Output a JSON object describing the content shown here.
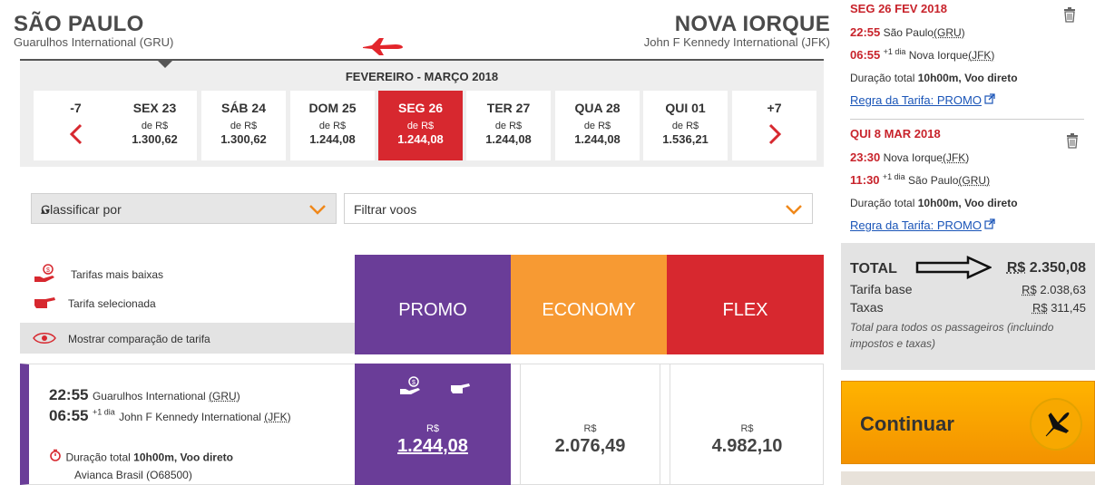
{
  "header": {
    "origin_city": "SÃO PAULO",
    "origin_airport": "Guarulhos International (GRU)",
    "dest_city": "NOVA IORQUE",
    "dest_airport": "John F Kennedy International (JFK)"
  },
  "dates": {
    "month_label": "FEVEREIRO - MARÇO 2018",
    "prev_label": "-7",
    "next_label": "+7",
    "days": [
      {
        "name": "SEX 23",
        "from": "de R$",
        "price": "1.300,62"
      },
      {
        "name": "SÁB 24",
        "from": "de R$",
        "price": "1.300,62"
      },
      {
        "name": "DOM 25",
        "from": "de R$",
        "price": "1.244,08"
      },
      {
        "name": "SEG 26",
        "from": "de R$",
        "price": "1.244,08",
        "selected": true
      },
      {
        "name": "TER 27",
        "from": "de R$",
        "price": "1.244,08"
      },
      {
        "name": "QUA 28",
        "from": "de R$",
        "price": "1.244,08"
      },
      {
        "name": "QUI 01",
        "from": "de R$",
        "price": "1.536,21"
      }
    ]
  },
  "filters": {
    "sort_label": "Classificar por",
    "filter_label": "Filtrar voos"
  },
  "legend": {
    "lowest": "Tarifas mais baixas",
    "selected": "Tarifa selecionada",
    "compare": "Mostrar comparação de tarifa"
  },
  "fares": {
    "promo": "PROMO",
    "economy": "ECONOMY",
    "flex": "FLEX"
  },
  "flight": {
    "dep_time": "22:55",
    "dep_airport": "Guarulhos International ",
    "dep_code": "(GRU)",
    "arr_time": "06:55",
    "arr_plus": "+1 dia",
    "arr_airport": "John F Kennedy International ",
    "arr_code": "(JFK)",
    "duration_label": "Duração total ",
    "duration_value": "10h00m, Voo direto",
    "carrier": "Avianca Brasil (O68500)",
    "currency": "R$",
    "promo_price": "1.244,08",
    "economy_price": "2.076,49",
    "flex_price": "4.982,10"
  },
  "summary": {
    "out": {
      "date": "SEG 26 FEV 2018",
      "dep_time": "22:55",
      "dep_city": "São Paulo",
      "dep_code": "(GRU)",
      "arr_time": "06:55",
      "arr_plus": "+1 dia",
      "arr_city": "Nova Iorque",
      "arr_code": "(JFK)",
      "duration_label": "Duração total ",
      "duration_value": "10h00m, Voo direto",
      "rule": "Regra da Tarifa: PROMO"
    },
    "ret": {
      "date": "QUI 8 MAR 2018",
      "dep_time": "23:30",
      "dep_city": "Nova Iorque",
      "dep_code": "(JFK)",
      "arr_time": "11:30",
      "arr_plus": "+1 dia",
      "arr_city": "São Paulo",
      "arr_code": "(GRU)",
      "duration_label": "Duração total ",
      "duration_value": "10h00m, Voo direto",
      "rule": "Regra da Tarifa: PROMO"
    },
    "total_label": "TOTAL",
    "total_currency": "R$",
    "total_value": "2.350,08",
    "base_label": "Tarifa base",
    "base_currency": "R$",
    "base_value": "2.038,63",
    "tax_label": "Taxas",
    "tax_currency": "R$",
    "tax_value": "311,45",
    "note": "Total para todos os passageiros (incluindo impostos e taxas)",
    "continue_label": "Continuar"
  },
  "colors": {
    "promo": "#6a3d98",
    "economy": "#f79a33",
    "flex": "#d7282f",
    "accent_red": "#c8232b",
    "link_blue": "#1a55b8"
  }
}
